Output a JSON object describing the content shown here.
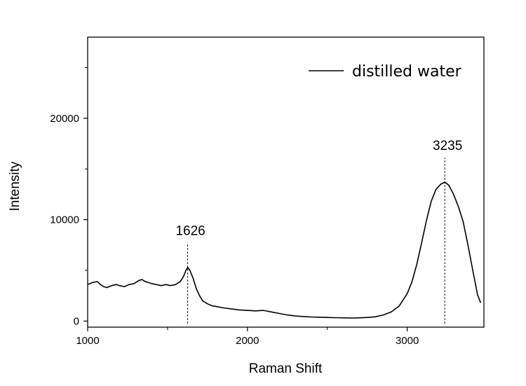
{
  "chart_data": {
    "type": "line",
    "title": "",
    "xlabel": "Raman Shift",
    "ylabel": "Intensity",
    "xlim": [
      1000,
      3480
    ],
    "ylim": [
      -600,
      28000
    ],
    "xticks": [
      1000,
      2000,
      3000
    ],
    "yticks": [
      0,
      10000,
      20000
    ],
    "xtick_labels": [
      "1000",
      "2000",
      "3000"
    ],
    "ytick_labels": [
      "0",
      "10000",
      "20000"
    ],
    "grid": false,
    "legend": {
      "position": "top-right",
      "entries": [
        "distilled water"
      ]
    },
    "series": [
      {
        "name": "distilled water",
        "color": "#000000",
        "x": [
          1000,
          1030,
          1060,
          1080,
          1100,
          1120,
          1150,
          1180,
          1200,
          1230,
          1260,
          1290,
          1320,
          1340,
          1360,
          1380,
          1400,
          1430,
          1460,
          1490,
          1520,
          1550,
          1580,
          1600,
          1615,
          1626,
          1640,
          1660,
          1680,
          1700,
          1720,
          1750,
          1780,
          1800,
          1850,
          1900,
          1950,
          2000,
          2050,
          2100,
          2150,
          2200,
          2250,
          2300,
          2350,
          2400,
          2450,
          2500,
          2550,
          2600,
          2650,
          2700,
          2750,
          2800,
          2850,
          2900,
          2950,
          3000,
          3030,
          3060,
          3090,
          3120,
          3150,
          3180,
          3210,
          3235,
          3260,
          3290,
          3320,
          3350,
          3380,
          3410,
          3440,
          3460
        ],
        "y": [
          3600,
          3800,
          3900,
          3600,
          3400,
          3300,
          3500,
          3600,
          3500,
          3400,
          3600,
          3700,
          4000,
          4100,
          3900,
          3800,
          3700,
          3600,
          3500,
          3600,
          3500,
          3600,
          3900,
          4400,
          5000,
          5300,
          5000,
          4200,
          3200,
          2500,
          2000,
          1700,
          1500,
          1450,
          1300,
          1200,
          1100,
          1050,
          1000,
          1050,
          900,
          750,
          600,
          500,
          450,
          400,
          380,
          350,
          330,
          320,
          300,
          320,
          350,
          420,
          600,
          900,
          1500,
          2700,
          3900,
          5600,
          7700,
          9900,
          11800,
          13000,
          13500,
          13700,
          13400,
          12500,
          11300,
          9800,
          7500,
          5000,
          2600,
          1800
        ]
      }
    ],
    "annotations": [
      {
        "x": 1626,
        "label": "1626",
        "style": "dashed-vertical"
      },
      {
        "x": 3235,
        "label": "3235",
        "style": "dashed-vertical"
      }
    ]
  }
}
